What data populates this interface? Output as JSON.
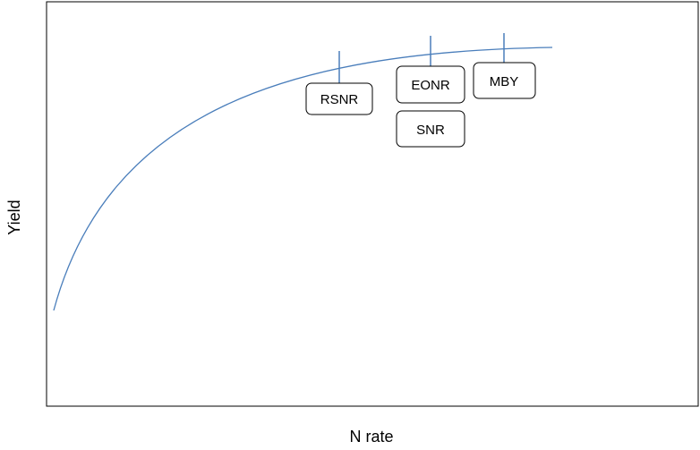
{
  "chart_data": {
    "type": "line",
    "title": "",
    "xlabel": "N rate",
    "ylabel": "Yield",
    "grid": false,
    "legend": "none",
    "curve_color": "#4A7EBB",
    "marker_line_color": "#4A7EBB",
    "markers": [
      {
        "label": "RSNR"
      },
      {
        "label": "EONR"
      },
      {
        "label": "SNR"
      },
      {
        "label": "MBY"
      }
    ]
  }
}
